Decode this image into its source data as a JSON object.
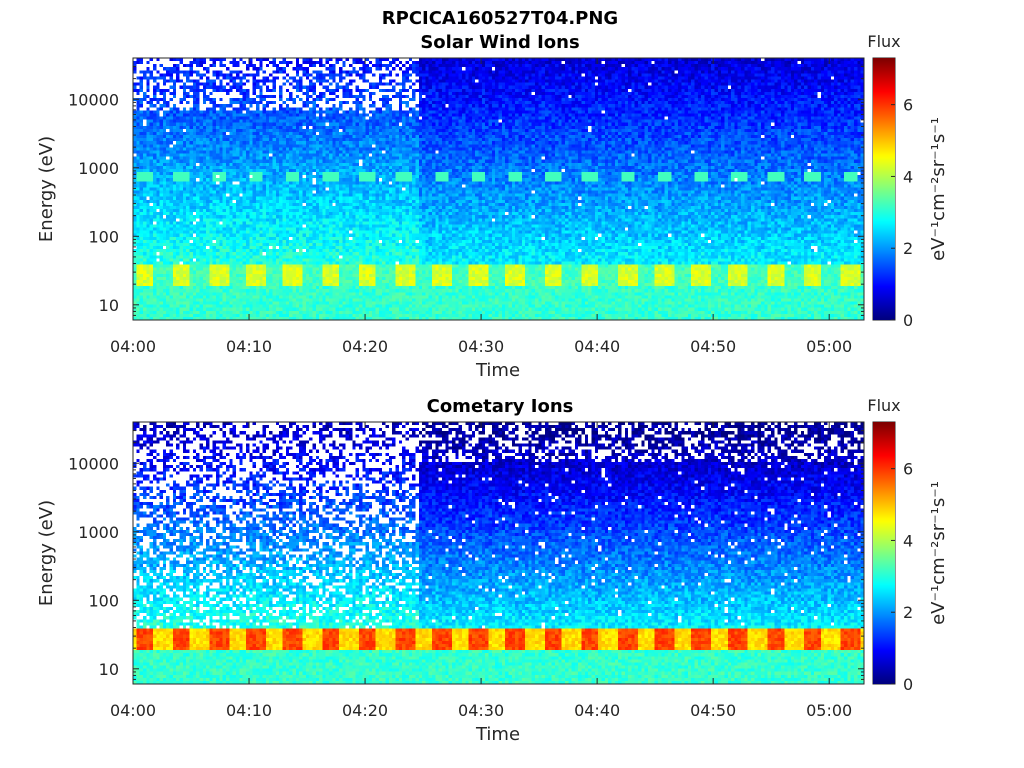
{
  "figure_title": "RPCICA160527T04.PNG",
  "colormap_name": "jet",
  "chart_data": [
    {
      "type": "heatmap",
      "title": "Solar Wind Ions",
      "xlabel": "Time",
      "ylabel": "Energy (eV)",
      "x_ticks": [
        "04:00",
        "04:10",
        "04:20",
        "04:30",
        "04:40",
        "04:50",
        "05:00"
      ],
      "x_range_minutes": [
        0,
        63
      ],
      "data_start_minute": 2.2,
      "y_scale": "log",
      "y_ticks": [
        10,
        100,
        1000,
        10000
      ],
      "y_range": [
        6,
        40000
      ],
      "colorbar": {
        "label": "Flux",
        "unit": "eV⁻¹cm⁻²sr⁻¹s⁻¹",
        "ticks": [
          0,
          2,
          4,
          6
        ],
        "range": [
          0,
          7.3
        ]
      },
      "features": {
        "low_energy_band_eV": [
          18,
          40
        ],
        "low_energy_band_level": 4.3,
        "mid_band_center_eV": 750,
        "mid_band_level": 3.0,
        "high_energy_sparse_until_minute": 24.7,
        "pulse_period_minutes": 3.2
      }
    },
    {
      "type": "heatmap",
      "title": "Cometary Ions",
      "xlabel": "Time",
      "ylabel": "Energy (eV)",
      "x_ticks": [
        "04:00",
        "04:10",
        "04:20",
        "04:30",
        "04:40",
        "04:50",
        "05:00"
      ],
      "x_range_minutes": [
        0,
        63
      ],
      "data_start_minute": 2.2,
      "y_scale": "log",
      "y_ticks": [
        10,
        100,
        1000,
        10000
      ],
      "y_range": [
        6,
        40000
      ],
      "colorbar": {
        "label": "Flux",
        "unit": "eV⁻¹cm⁻²sr⁻¹s⁻¹",
        "ticks": [
          0,
          2,
          4,
          6
        ],
        "range": [
          0,
          7.3
        ]
      },
      "features": {
        "low_energy_band_eV": [
          18,
          40
        ],
        "low_energy_band_level": 5.9,
        "high_energy_sparse_until_minute": 24.7,
        "pulse_period_minutes": 3.2
      }
    }
  ]
}
